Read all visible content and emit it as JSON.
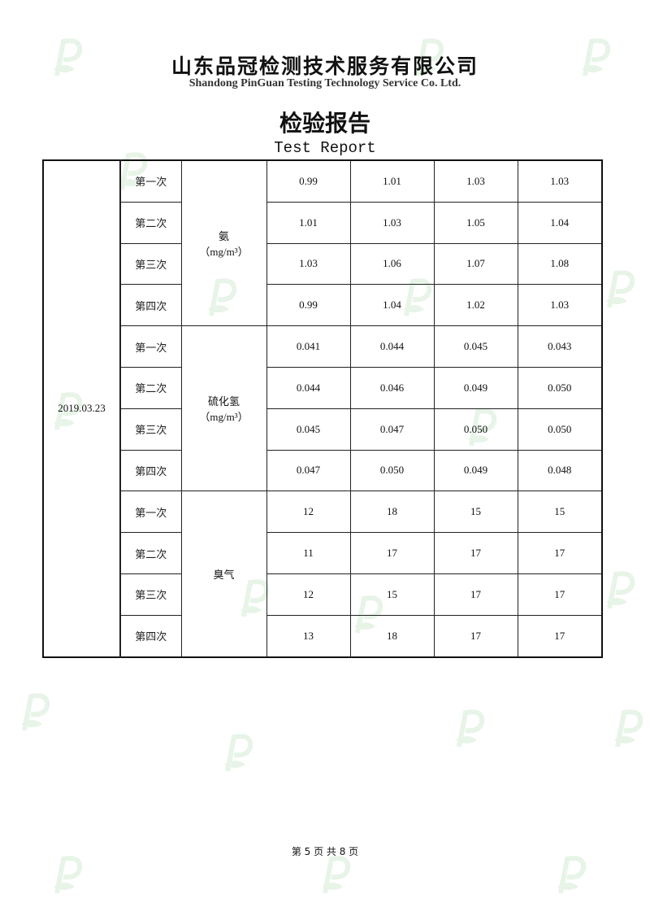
{
  "header": {
    "company_cn": "山东品冠检测技术服务有限公司",
    "company_en": "Shandong PinGuan Testing Technology Service Co. Ltd.",
    "title_cn": "检验报告",
    "title_en": "Test Report"
  },
  "watermark": {
    "icon": "pinguan-leaf-p-logo",
    "color": "#4caf50"
  },
  "table": {
    "date": "2019.03.23",
    "groups": [
      {
        "item": "氨",
        "unit": "（mg/m³）",
        "rows": [
          {
            "label": "第一次",
            "values": [
              "0.99",
              "1.01",
              "1.03",
              "1.03"
            ]
          },
          {
            "label": "第二次",
            "values": [
              "1.01",
              "1.03",
              "1.05",
              "1.04"
            ]
          },
          {
            "label": "第三次",
            "values": [
              "1.03",
              "1.06",
              "1.07",
              "1.08"
            ]
          },
          {
            "label": "第四次",
            "values": [
              "0.99",
              "1.04",
              "1.02",
              "1.03"
            ]
          }
        ]
      },
      {
        "item": "硫化氢",
        "unit": "（mg/m³）",
        "rows": [
          {
            "label": "第一次",
            "values": [
              "0.041",
              "0.044",
              "0.045",
              "0.043"
            ]
          },
          {
            "label": "第二次",
            "values": [
              "0.044",
              "0.046",
              "0.049",
              "0.050"
            ]
          },
          {
            "label": "第三次",
            "values": [
              "0.045",
              "0.047",
              "0.050",
              "0.050"
            ]
          },
          {
            "label": "第四次",
            "values": [
              "0.047",
              "0.050",
              "0.049",
              "0.048"
            ]
          }
        ]
      },
      {
        "item": "臭气",
        "unit": "",
        "rows": [
          {
            "label": "第一次",
            "values": [
              "12",
              "18",
              "15",
              "15"
            ]
          },
          {
            "label": "第二次",
            "values": [
              "11",
              "17",
              "17",
              "17"
            ]
          },
          {
            "label": "第三次",
            "values": [
              "12",
              "15",
              "17",
              "17"
            ]
          },
          {
            "label": "第四次",
            "values": [
              "13",
              "18",
              "17",
              "17"
            ]
          }
        ]
      }
    ]
  },
  "footer": {
    "page_text": "第 5 页 共 8 页"
  }
}
